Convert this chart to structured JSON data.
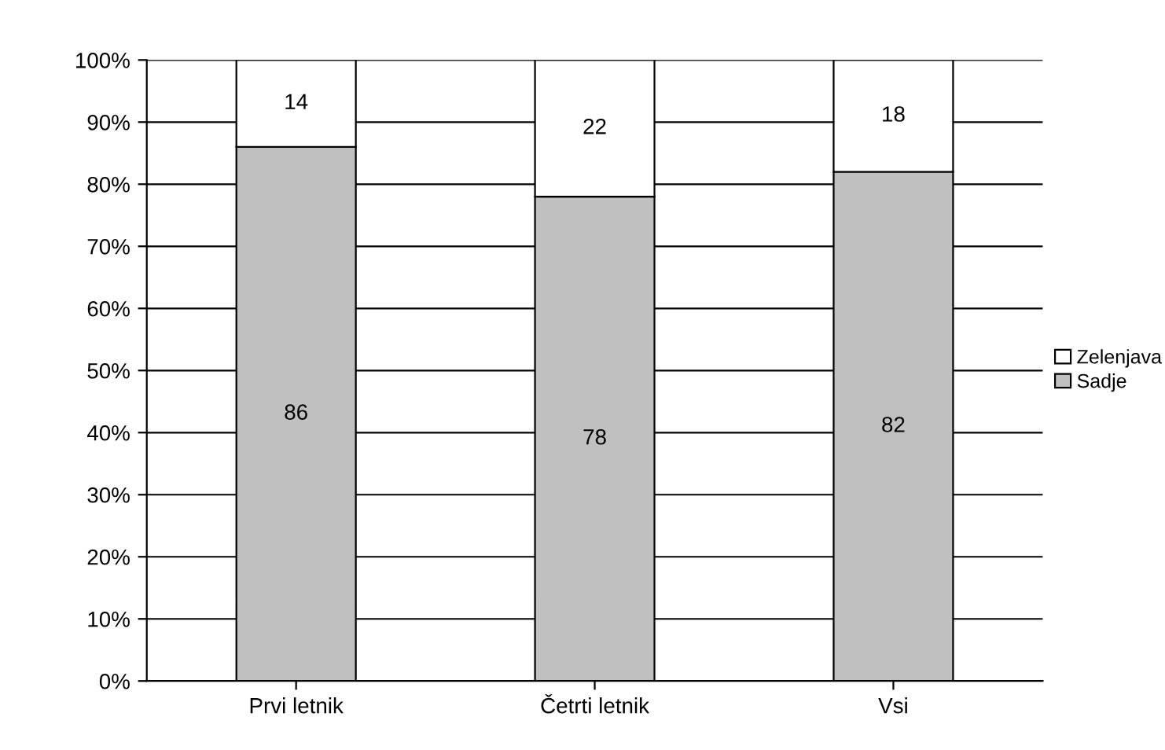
{
  "chart_data": {
    "type": "bar",
    "stacked": true,
    "categories": [
      "Prvi letnik",
      "Četrti letnik",
      "Vsi"
    ],
    "series": [
      {
        "name": "Sadje",
        "color": "#c0c0c0",
        "values": [
          86,
          78,
          82
        ]
      },
      {
        "name": "Zelenjava",
        "color": "#ffffff",
        "values": [
          14,
          22,
          18
        ]
      }
    ],
    "ylim": [
      0,
      100
    ],
    "yticks": [
      {
        "value": 0,
        "label": "0%"
      },
      {
        "value": 10,
        "label": "10%"
      },
      {
        "value": 20,
        "label": "20%"
      },
      {
        "value": 30,
        "label": "30%"
      },
      {
        "value": 40,
        "label": "40%"
      },
      {
        "value": 50,
        "label": "50%"
      },
      {
        "value": 60,
        "label": "60%"
      },
      {
        "value": 70,
        "label": "70%"
      },
      {
        "value": 80,
        "label": "80%"
      },
      {
        "value": 90,
        "label": "90%"
      },
      {
        "value": 100,
        "label": "100%"
      }
    ],
    "grid": "y",
    "legend": "right",
    "data_labels": true
  }
}
